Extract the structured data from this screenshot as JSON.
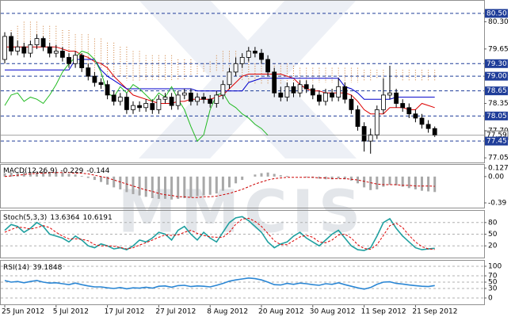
{
  "chart_data": [
    {
      "type": "candlestick",
      "watermark": "MMCIS",
      "categories": [
        "25 Jun 2012",
        null,
        null,
        null,
        null,
        null,
        null,
        null,
        "5 Jul 2012",
        null,
        null,
        null,
        null,
        null,
        null,
        null,
        "17 Jul 2012",
        null,
        null,
        null,
        null,
        null,
        null,
        null,
        "27 Jul 2012",
        null,
        null,
        null,
        null,
        null,
        null,
        null,
        "8 Aug 2012",
        null,
        null,
        null,
        null,
        null,
        null,
        null,
        "20 Aug 2012",
        null,
        null,
        null,
        null,
        null,
        null,
        null,
        "30 Aug 2012",
        null,
        null,
        null,
        null,
        null,
        null,
        null,
        "11 Sep 2012",
        null,
        null,
        null,
        null,
        null,
        null,
        null,
        "21 Sep 2012",
        null,
        null,
        null
      ],
      "open": [
        79.4,
        79.95,
        79.6,
        79.7,
        79.55,
        79.75,
        79.9,
        79.7,
        79.55,
        79.6,
        79.45,
        79.3,
        79.5,
        79.2,
        79.0,
        78.85,
        78.8,
        78.55,
        78.4,
        78.5,
        78.2,
        78.3,
        78.25,
        78.35,
        78.2,
        78.45,
        78.5,
        78.3,
        78.55,
        78.6,
        78.4,
        78.5,
        78.45,
        78.35,
        78.55,
        78.8,
        79.1,
        79.3,
        79.45,
        79.6,
        79.55,
        79.4,
        79.1,
        78.6,
        78.5,
        78.75,
        78.6,
        78.8,
        78.7,
        78.55,
        78.4,
        78.6,
        78.5,
        78.75,
        78.45,
        78.2,
        77.8,
        77.45,
        77.6,
        78.2,
        78.55,
        78.6,
        78.35,
        78.25,
        78.1,
        78.0,
        77.85,
        77.75
      ],
      "high": [
        80.05,
        80.05,
        79.85,
        79.8,
        79.85,
        80.0,
        79.95,
        79.8,
        79.75,
        79.7,
        79.55,
        79.6,
        79.55,
        79.3,
        79.1,
        78.95,
        78.9,
        78.65,
        78.6,
        78.6,
        78.4,
        78.4,
        78.45,
        78.45,
        78.55,
        78.6,
        78.6,
        78.65,
        78.7,
        78.7,
        78.6,
        78.6,
        78.55,
        78.65,
        78.9,
        79.2,
        79.45,
        79.55,
        79.7,
        79.7,
        79.65,
        79.5,
        79.2,
        78.75,
        78.85,
        78.85,
        78.9,
        78.9,
        78.8,
        78.65,
        78.7,
        78.7,
        78.95,
        78.85,
        78.55,
        78.3,
        77.9,
        77.75,
        78.3,
        78.95,
        79.25,
        78.7,
        78.45,
        78.35,
        78.2,
        78.1,
        77.95,
        77.8
      ],
      "low": [
        79.3,
        79.5,
        79.5,
        79.45,
        79.45,
        79.65,
        79.6,
        79.45,
        79.45,
        79.35,
        79.2,
        79.2,
        79.1,
        78.9,
        78.75,
        78.7,
        78.45,
        78.3,
        78.3,
        78.1,
        78.1,
        78.15,
        78.15,
        78.1,
        78.1,
        78.35,
        78.2,
        78.2,
        78.45,
        78.3,
        78.3,
        78.35,
        78.25,
        78.25,
        78.45,
        78.7,
        79.0,
        79.2,
        79.35,
        79.45,
        79.3,
        79.0,
        78.5,
        78.4,
        78.4,
        78.5,
        78.5,
        78.6,
        78.45,
        78.3,
        78.3,
        78.4,
        78.4,
        78.35,
        78.1,
        77.7,
        77.2,
        77.15,
        77.5,
        78.1,
        78.45,
        78.25,
        78.15,
        78.0,
        77.9,
        77.75,
        77.65,
        77.55
      ],
      "close": [
        79.95,
        79.6,
        79.7,
        79.55,
        79.75,
        79.9,
        79.7,
        79.55,
        79.6,
        79.45,
        79.3,
        79.5,
        79.2,
        79.0,
        78.85,
        78.8,
        78.55,
        78.4,
        78.5,
        78.2,
        78.3,
        78.25,
        78.35,
        78.2,
        78.45,
        78.5,
        78.3,
        78.55,
        78.6,
        78.4,
        78.5,
        78.45,
        78.35,
        78.55,
        78.8,
        79.1,
        79.3,
        79.45,
        79.6,
        79.55,
        79.4,
        79.1,
        78.6,
        78.5,
        78.75,
        78.6,
        78.8,
        78.7,
        78.55,
        78.4,
        78.6,
        78.5,
        78.75,
        78.45,
        78.2,
        77.8,
        77.45,
        77.6,
        78.2,
        78.55,
        78.6,
        78.35,
        78.25,
        78.1,
        78.0,
        77.85,
        77.75,
        77.59
      ],
      "up_color": "#ffffff",
      "down_color": "#000000",
      "cloud": {
        "color": "#cc7a33",
        "span_a": [
          80.0,
          80.1,
          80.2,
          80.3,
          80.3,
          80.3,
          80.2,
          80.2,
          80.2,
          80.1,
          80.1,
          80.0,
          80.0,
          80.0,
          79.9,
          79.9,
          79.8,
          79.8,
          79.7,
          79.7,
          79.6,
          79.6,
          79.5,
          79.5,
          79.5,
          79.5,
          79.5,
          79.4,
          79.4,
          79.4,
          79.3,
          79.3,
          79.35,
          79.5,
          79.6,
          79.6,
          79.6,
          79.5,
          79.4,
          79.3,
          79.3,
          79.3,
          79.3,
          79.3,
          79.3,
          79.25,
          79.2,
          79.2,
          79.2,
          79.2,
          79.2,
          79.2,
          79.2,
          79.2,
          79.2,
          79.2,
          79.15,
          79.15,
          79.15,
          79.15,
          79.15,
          79.15,
          79.15,
          79.15,
          79.15,
          79.15,
          79.15,
          79.15
        ],
        "span_b": [
          79.7,
          79.7,
          79.7,
          79.7,
          79.7,
          79.7,
          79.8,
          79.8,
          79.6,
          79.5,
          79.4,
          79.2,
          79.1,
          79.0,
          79.0,
          79.0,
          79.0,
          79.0,
          79.0,
          78.9,
          78.9,
          78.9,
          78.9,
          78.9,
          78.9,
          78.9,
          78.9,
          78.9,
          78.9,
          79.0,
          79.05,
          79.1,
          79.1,
          79.1,
          79.1,
          79.1,
          79.0,
          78.9,
          78.85,
          78.8,
          78.8,
          78.8,
          78.8,
          78.8,
          78.8,
          78.8,
          78.85,
          78.85,
          78.85,
          78.85,
          78.85,
          78.85,
          78.85,
          78.85,
          78.85,
          78.85,
          78.9,
          78.9,
          78.95,
          78.95,
          78.95,
          78.95,
          78.9,
          78.9,
          78.9,
          78.9,
          78.9,
          78.9
        ]
      },
      "lines": [
        {
          "color": "#dd0000",
          "values": [
            79.7,
            79.7,
            79.7,
            79.7,
            79.7,
            79.7,
            79.7,
            79.7,
            79.7,
            79.65,
            79.6,
            79.6,
            79.5,
            79.45,
            79.35,
            79.3,
            79.2,
            79.0,
            78.85,
            78.7,
            78.55,
            78.5,
            78.45,
            78.4,
            78.35,
            78.35,
            78.35,
            78.4,
            78.4,
            78.45,
            78.45,
            78.45,
            78.45,
            78.5,
            78.55,
            78.7,
            78.85,
            79.0,
            79.05,
            79.05,
            79.05,
            79.05,
            79.05,
            79.05,
            79.0,
            78.95,
            78.8,
            78.7,
            78.65,
            78.65,
            78.6,
            78.6,
            78.6,
            78.6,
            78.55,
            78.4,
            78.2,
            78.1,
            78.1,
            78.1,
            78.25,
            78.25,
            78.25,
            78.2,
            78.2,
            78.35,
            78.3,
            78.25
          ]
        },
        {
          "color": "#0000cc",
          "values": [
            79.15,
            79.15,
            79.15,
            79.15,
            79.15,
            79.15,
            79.15,
            79.15,
            79.15,
            79.15,
            79.15,
            79.4,
            79.4,
            79.4,
            79.4,
            79.15,
            79.0,
            78.9,
            78.8,
            78.7,
            78.7,
            78.7,
            78.7,
            78.7,
            78.7,
            78.7,
            78.7,
            78.7,
            78.7,
            78.7,
            78.65,
            78.65,
            78.65,
            78.65,
            78.65,
            78.65,
            78.65,
            78.65,
            78.85,
            78.9,
            78.95,
            78.95,
            78.95,
            78.95,
            78.95,
            78.95,
            78.95,
            78.95,
            78.95,
            78.95,
            78.95,
            78.95,
            78.95,
            78.75,
            78.7,
            78.6,
            78.45,
            78.45,
            78.45,
            78.45,
            78.45,
            78.5,
            78.5,
            78.5,
            78.5,
            78.5,
            78.5,
            78.5
          ]
        },
        {
          "color": "#22bb22",
          "values": [
            78.3,
            78.55,
            78.6,
            78.4,
            78.5,
            78.45,
            78.35,
            78.55,
            78.8,
            79.1,
            79.3,
            79.45,
            79.6,
            79.55,
            79.4,
            79.1,
            78.6,
            78.5,
            78.75,
            78.6,
            78.8,
            78.7,
            78.55,
            78.4,
            78.6,
            78.5,
            78.75,
            78.45,
            78.2,
            77.8,
            77.45,
            77.6,
            78.2,
            78.55,
            78.6,
            78.35,
            78.25,
            78.1,
            78.0,
            77.85,
            77.75,
            77.59,
            null,
            null,
            null,
            null,
            null,
            null,
            null,
            null,
            null,
            null,
            null,
            null,
            null,
            null,
            null,
            null,
            null,
            null,
            null,
            null,
            null,
            null,
            null,
            null,
            null,
            null
          ]
        }
      ],
      "ylim": [
        76.94,
        80.82
      ],
      "yticks": [
        {
          "value": 80.3,
          "label": "80.30"
        },
        79.65,
        {
          "value": 79.0,
          "label": "79.00"
        },
        78.35,
        {
          "value": 77.7,
          "label": "77.70"
        },
        77.05
      ],
      "levels": [
        {
          "value": 80.5,
          "label": "80.50"
        },
        {
          "value": 79.3,
          "label": "79.30"
        },
        {
          "value": 79.0,
          "label": "79.00"
        },
        78.65,
        78.05,
        77.45
      ],
      "level_color": "#1f3d99",
      "bid": 77.59,
      "bid_color": "#707070"
    },
    {
      "type": "bar",
      "title": "MACD(12,26,9)",
      "color": "#a8a8a8",
      "values": [
        0.05,
        0.06,
        0.06,
        0.07,
        0.07,
        0.08,
        0.08,
        0.07,
        0.07,
        0.06,
        0.04,
        0.03,
        0.01,
        -0.02,
        -0.05,
        -0.08,
        -0.12,
        -0.16,
        -0.19,
        -0.23,
        -0.26,
        -0.28,
        -0.3,
        -0.32,
        -0.33,
        -0.33,
        -0.34,
        -0.33,
        -0.32,
        -0.31,
        -0.29,
        -0.28,
        -0.27,
        -0.25,
        -0.21,
        -0.16,
        -0.1,
        -0.05,
        0.0,
        0.03,
        0.05,
        0.06,
        0.04,
        0.02,
        0.01,
        0.0,
        0.0,
        -0.01,
        -0.02,
        -0.03,
        -0.04,
        -0.04,
        -0.03,
        -0.04,
        -0.06,
        -0.1,
        -0.16,
        -0.2,
        -0.19,
        -0.15,
        -0.12,
        -0.13,
        -0.15,
        -0.17,
        -0.19,
        -0.21,
        -0.22,
        -0.229
      ],
      "signal": {
        "color": "#cc0000",
        "values": [
          0.0,
          0.01,
          0.02,
          0.03,
          0.04,
          0.05,
          0.05,
          0.06,
          0.06,
          0.06,
          0.06,
          0.05,
          0.05,
          0.04,
          0.02,
          0.0,
          -0.02,
          -0.05,
          -0.08,
          -0.11,
          -0.14,
          -0.17,
          -0.2,
          -0.22,
          -0.25,
          -0.27,
          -0.28,
          -0.3,
          -0.3,
          -0.31,
          -0.31,
          -0.3,
          -0.3,
          -0.29,
          -0.27,
          -0.25,
          -0.22,
          -0.19,
          -0.15,
          -0.11,
          -0.08,
          -0.05,
          -0.03,
          -0.02,
          -0.01,
          -0.01,
          -0.01,
          -0.01,
          -0.01,
          -0.02,
          -0.02,
          -0.03,
          -0.03,
          -0.03,
          -0.04,
          -0.05,
          -0.07,
          -0.09,
          -0.11,
          -0.12,
          -0.12,
          -0.12,
          -0.13,
          -0.13,
          -0.14,
          -0.14,
          -0.14,
          -0.144
        ]
      },
      "ylim": [
        -0.39,
        0.127
      ],
      "yticks": [
        0.127,
        {
          "value": 0,
          "label": "0.00"
        },
        -0.39
      ]
    },
    {
      "type": "line",
      "title": "Stoch(5,3,3)",
      "series": [
        {
          "color": "#20a0a0",
          "values": [
            60,
            75,
            70,
            55,
            65,
            80,
            70,
            50,
            45,
            40,
            30,
            45,
            35,
            20,
            15,
            25,
            20,
            12,
            15,
            10,
            20,
            35,
            30,
            40,
            55,
            50,
            35,
            60,
            70,
            50,
            35,
            55,
            40,
            30,
            55,
            80,
            92,
            95,
            85,
            70,
            55,
            30,
            15,
            25,
            30,
            45,
            55,
            40,
            30,
            20,
            35,
            50,
            60,
            40,
            20,
            10,
            8,
            15,
            45,
            80,
            90,
            65,
            45,
            30,
            15,
            10,
            12,
            13.6364
          ]
        },
        {
          "color": "#dd0000",
          "dashed": true,
          "values": [
            55,
            62,
            68,
            67,
            63,
            67,
            72,
            67,
            55,
            45,
            38,
            38,
            37,
            33,
            23,
            20,
            20,
            19,
            16,
            12,
            15,
            22,
            28,
            35,
            42,
            48,
            47,
            48,
            55,
            60,
            52,
            47,
            43,
            42,
            42,
            55,
            76,
            89,
            91,
            83,
            70,
            52,
            33,
            23,
            23,
            33,
            43,
            47,
            42,
            30,
            28,
            35,
            48,
            50,
            40,
            23,
            13,
            11,
            23,
            47,
            72,
            78,
            67,
            47,
            30,
            18,
            12,
            10.6191
          ]
        }
      ],
      "ylim": [
        0,
        100
      ],
      "yticks": [
        80,
        50,
        20
      ],
      "grid": true
    },
    {
      "type": "line",
      "title": "RSI(14)",
      "series": [
        {
          "color": "#2a86d4",
          "values": [
            55,
            50,
            52,
            48,
            52,
            55,
            50,
            47,
            48,
            45,
            42,
            47,
            42,
            38,
            35,
            35,
            32,
            30,
            33,
            29,
            32,
            31,
            34,
            31,
            37,
            38,
            34,
            39,
            40,
            36,
            38,
            37,
            35,
            40,
            46,
            53,
            57,
            60,
            63,
            61,
            57,
            50,
            42,
            41,
            46,
            43,
            47,
            45,
            42,
            40,
            45,
            43,
            48,
            42,
            37,
            32,
            28,
            33,
            43,
            50,
            51,
            46,
            44,
            41,
            39,
            37,
            36,
            39.1848
          ]
        }
      ],
      "ylim": [
        0,
        100
      ],
      "yticks": [
        100,
        70,
        50,
        30,
        0
      ],
      "grid": true
    }
  ]
}
